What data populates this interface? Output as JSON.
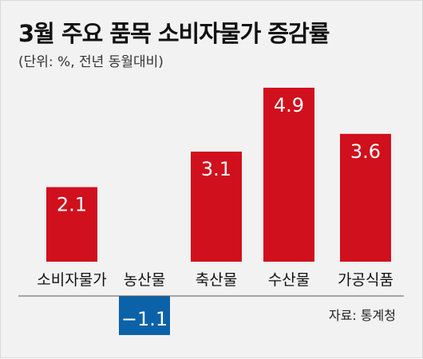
{
  "header": {
    "title": "3월 주요 품목 소비자물가 증감률",
    "subtitle": "(단위: %, 전년 동월대비)"
  },
  "source": "자료: 통계청",
  "colors": {
    "positive": "#d0101c",
    "negative": "#0b62a8",
    "background": "#f2f2f2",
    "baseline": "#555555"
  },
  "chart_data": {
    "type": "bar",
    "title": "3월 주요 품목 소비자물가 증감률",
    "subtitle": "(단위: %, 전년 동월대비)",
    "categories": [
      "소비자물가",
      "농산물",
      "축산물",
      "수산물",
      "가공식품"
    ],
    "values": [
      2.1,
      -1.1,
      3.1,
      4.9,
      3.6
    ],
    "value_labels": [
      "2.1",
      "−1.1",
      "3.1",
      "4.9",
      "3.6"
    ],
    "ylabel": "",
    "xlabel": "",
    "ylim": [
      -1.1,
      4.9
    ],
    "grid": false,
    "legend": "none"
  }
}
